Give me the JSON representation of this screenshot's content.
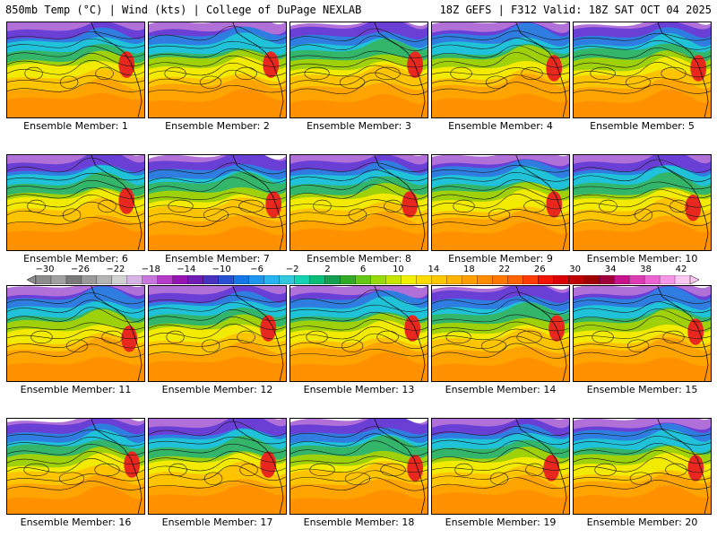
{
  "header": {
    "left_title": "850mb Temp (°C) | Wind (kts) | College of DuPage NEXLAB",
    "right_title": "18Z GEFS | F312 Valid: 18Z SAT OCT 04 2025"
  },
  "members": [
    "Ensemble Member: 1",
    "Ensemble Member: 2",
    "Ensemble Member: 3",
    "Ensemble Member: 4",
    "Ensemble Member: 5",
    "Ensemble Member: 6",
    "Ensemble Member: 7",
    "Ensemble Member: 8",
    "Ensemble Member: 9",
    "Ensemble Member: 10",
    "Ensemble Member: 11",
    "Ensemble Member: 12",
    "Ensemble Member: 13",
    "Ensemble Member: 14",
    "Ensemble Member: 15",
    "Ensemble Member: 16",
    "Ensemble Member: 17",
    "Ensemble Member: 18",
    "Ensemble Member: 19",
    "Ensemble Member: 20"
  ],
  "colorbar": {
    "labels": [
      "−30",
      "−26",
      "−22",
      "−18",
      "−14",
      "−10",
      "−6",
      "−2",
      "2",
      "6",
      "10",
      "14",
      "18",
      "22",
      "26",
      "30",
      "34",
      "38",
      "42"
    ],
    "colors": [
      "#8c8c8c",
      "#a0a0a0",
      "#7a7a7a",
      "#9a9a9a",
      "#b4b4b4",
      "#d2d2d2",
      "#d8b4e6",
      "#c878dc",
      "#b43cc8",
      "#9614b4",
      "#6e1eb4",
      "#4632be",
      "#2850d2",
      "#1478e6",
      "#1e96f0",
      "#28b4f0",
      "#32c8dc",
      "#14d2b4",
      "#0abe78",
      "#14a050",
      "#32aa28",
      "#64c814",
      "#96dc0a",
      "#c8e600",
      "#f0f000",
      "#ffdc00",
      "#ffc800",
      "#ffb400",
      "#ffa000",
      "#ff8c00",
      "#ff7800",
      "#ff6400",
      "#ff3c00",
      "#f01400",
      "#dc0000",
      "#be0000",
      "#a00000",
      "#a0003c",
      "#c8148c",
      "#dc3cb4",
      "#ec64d2",
      "#f496e6",
      "#fac8f0"
    ]
  }
}
